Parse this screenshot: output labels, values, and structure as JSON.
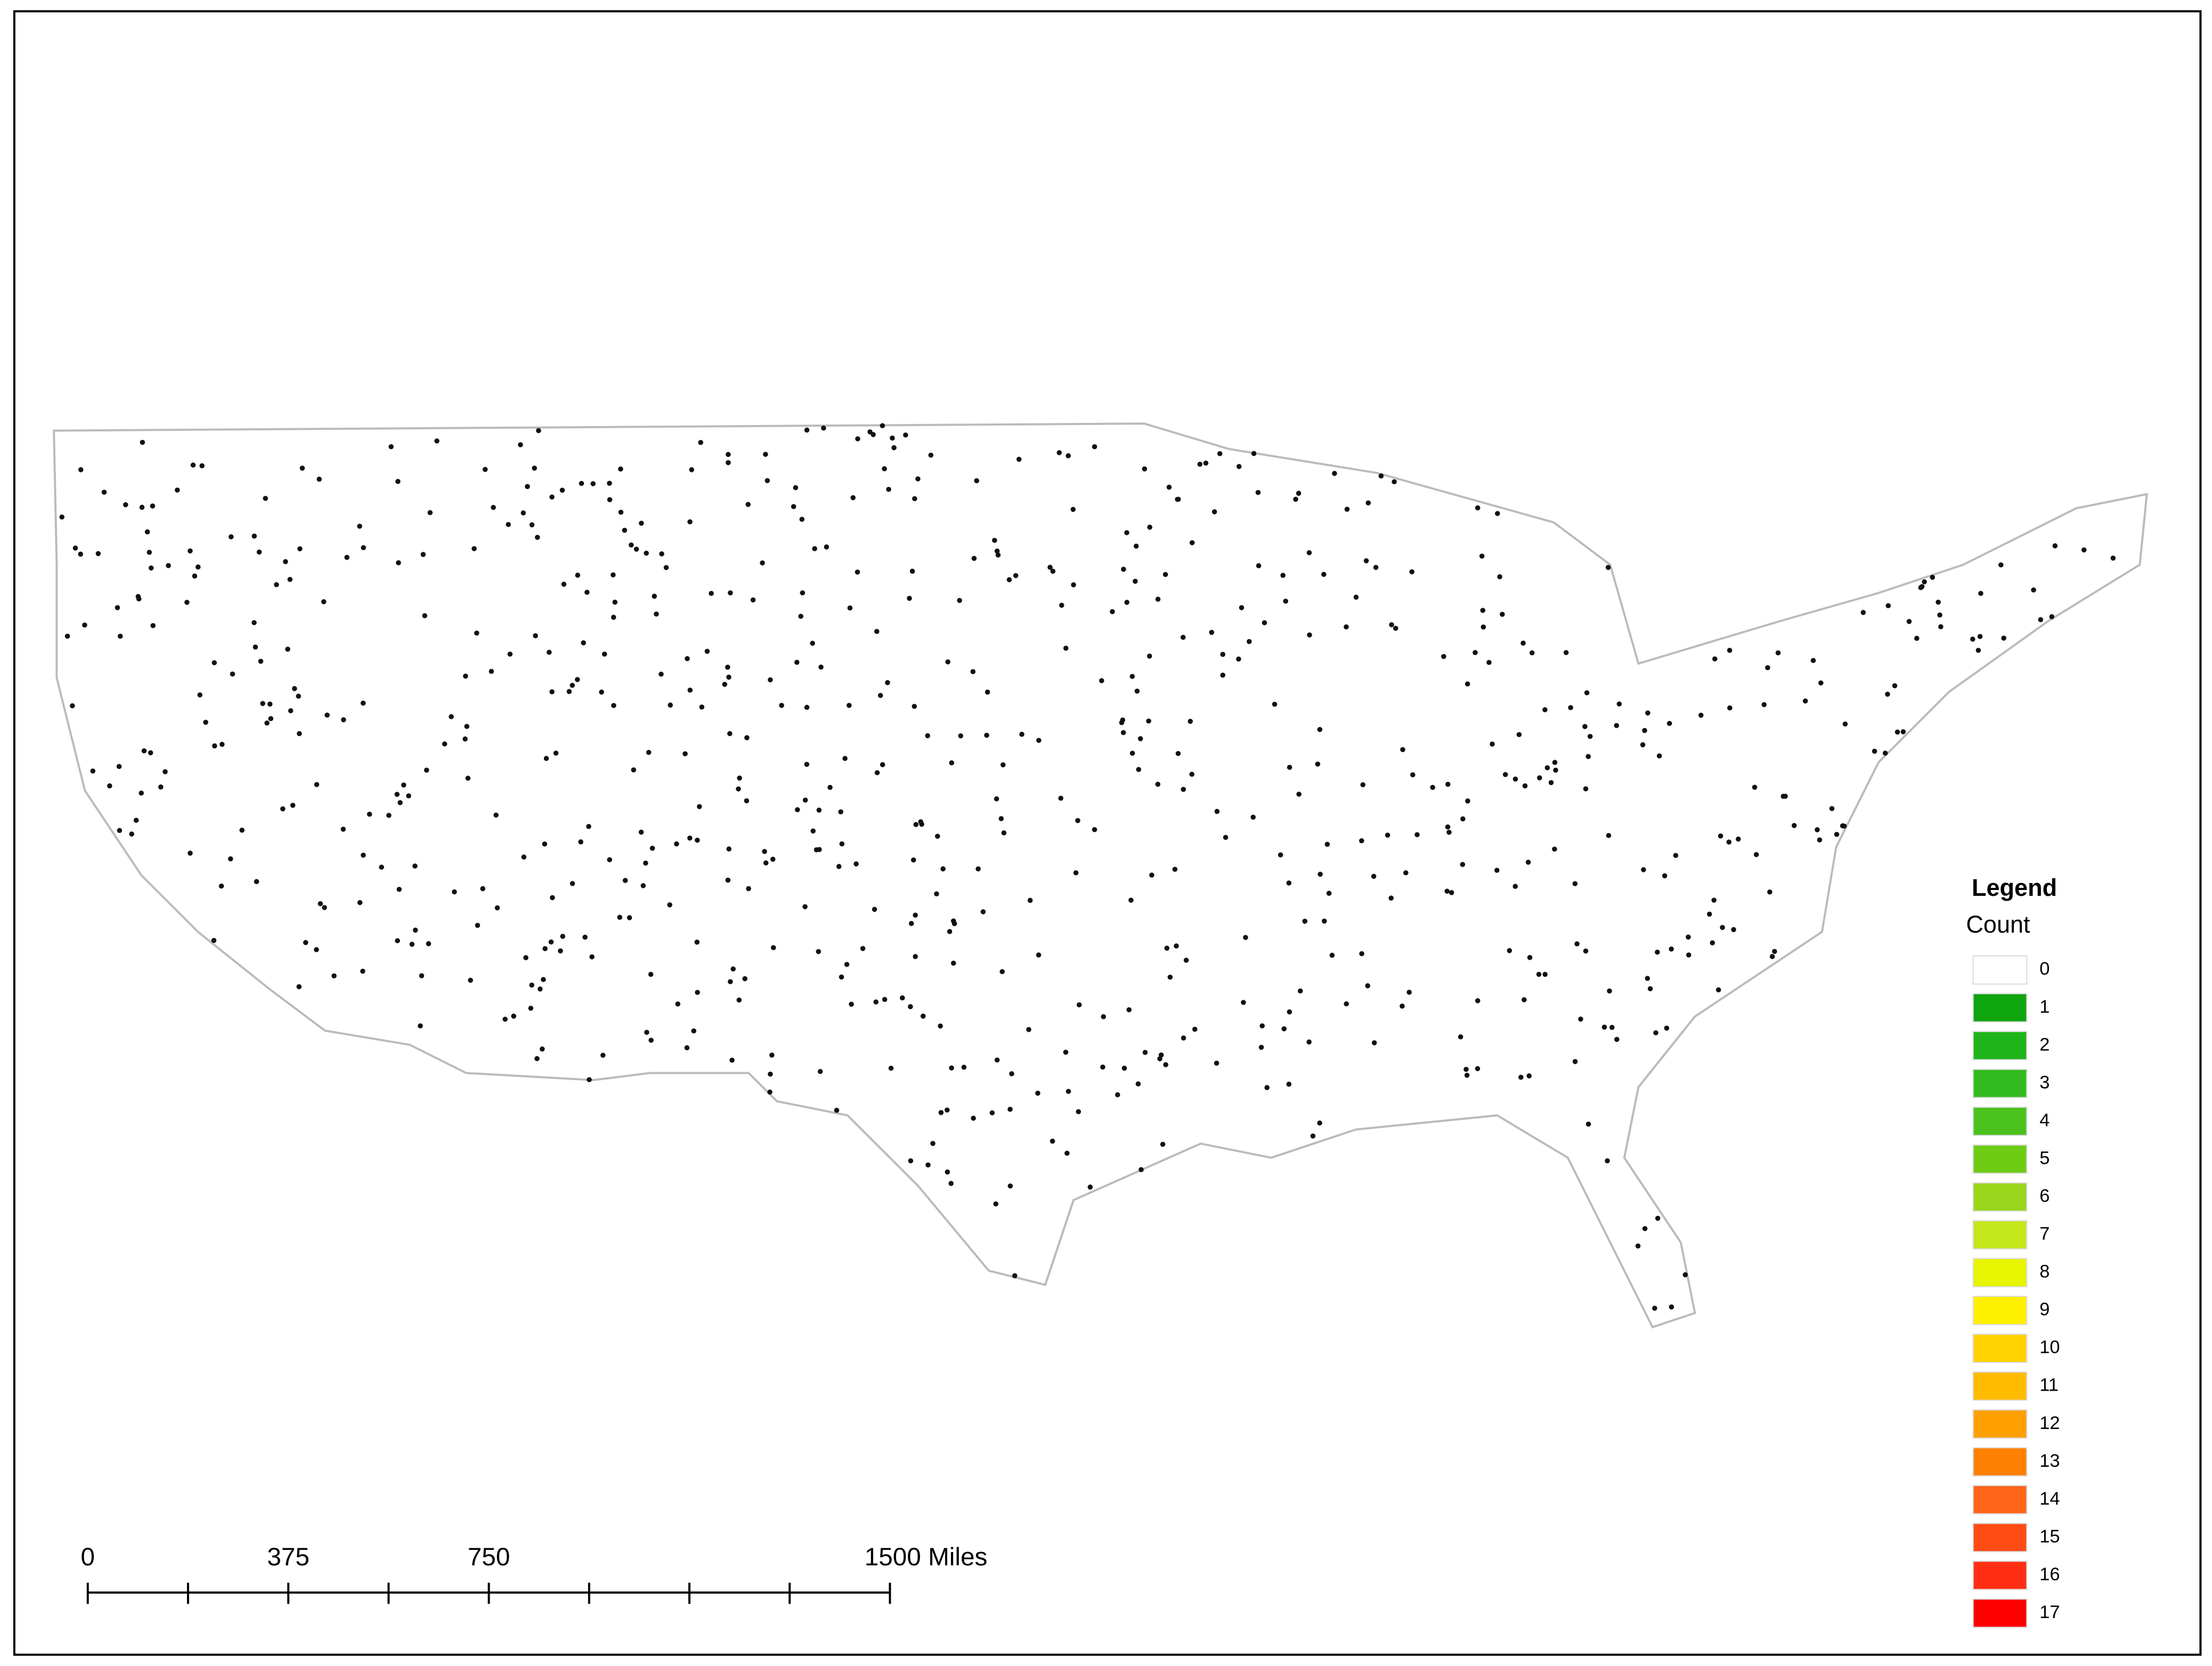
{
  "legend": {
    "title": "Legend",
    "subtitle": "Count",
    "items": [
      {
        "label": "0",
        "color": "#ffffff"
      },
      {
        "label": "1",
        "color": "#0fa50f"
      },
      {
        "label": "2",
        "color": "#1eb419"
      },
      {
        "label": "3",
        "color": "#32bb1e"
      },
      {
        "label": "4",
        "color": "#4bc21e"
      },
      {
        "label": "5",
        "color": "#6ecc14"
      },
      {
        "label": "6",
        "color": "#9ad61c"
      },
      {
        "label": "7",
        "color": "#c4e81c"
      },
      {
        "label": "8",
        "color": "#e8f500"
      },
      {
        "label": "9",
        "color": "#fff000"
      },
      {
        "label": "10",
        "color": "#ffd200"
      },
      {
        "label": "11",
        "color": "#ffbb00"
      },
      {
        "label": "12",
        "color": "#ffa000"
      },
      {
        "label": "13",
        "color": "#ff8000"
      },
      {
        "label": "14",
        "color": "#ff6419"
      },
      {
        "label": "15",
        "color": "#ff4b14"
      },
      {
        "label": "16",
        "color": "#ff2d14"
      },
      {
        "label": "17",
        "color": "#ff0000"
      }
    ]
  },
  "scale_bar": {
    "labels": [
      "0",
      "375",
      "750",
      "1500 Miles"
    ]
  }
}
